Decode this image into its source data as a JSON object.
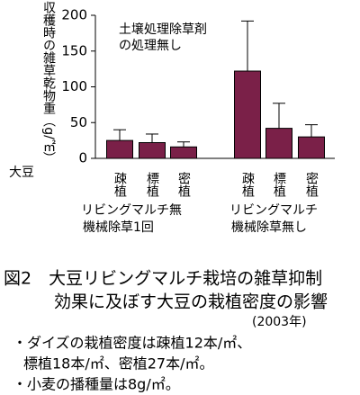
{
  "chart_data": {
    "type": "bar",
    "ylabel": "収穫時の雑草乾物重（g/㎡）",
    "xlabel": "大豆",
    "annotation": [
      "土壌処理除草剤",
      "の処理無し"
    ],
    "categories": [
      "疎植",
      "標植",
      "密植",
      "疎植",
      "標植",
      "密植"
    ],
    "groups": [
      {
        "lines": [
          "リビングマルチ無",
          "機械除草1回"
        ]
      },
      {
        "lines": [
          "リビングマルチ",
          "機械除草無し"
        ]
      }
    ],
    "values": [
      25,
      22,
      16,
      122,
      42,
      30
    ],
    "errors": [
      15,
      12,
      7,
      70,
      35,
      17
    ],
    "color": "#7a2048",
    "ylim": [
      0,
      200
    ],
    "yticks": [
      0,
      50,
      100,
      150,
      200
    ]
  },
  "caption": {
    "title_lines": [
      "図2　大豆リビングマルチ栽培の雑草抑制",
      "効果に及ぼす大豆の栽植密度の影響"
    ],
    "year": "(2003年)",
    "notes": [
      "・ダイズの栽植密度は疎植12本/㎡、",
      "標植18本/㎡、密植27本/㎡。",
      "・小麦の播種量は8g/㎡。"
    ]
  }
}
